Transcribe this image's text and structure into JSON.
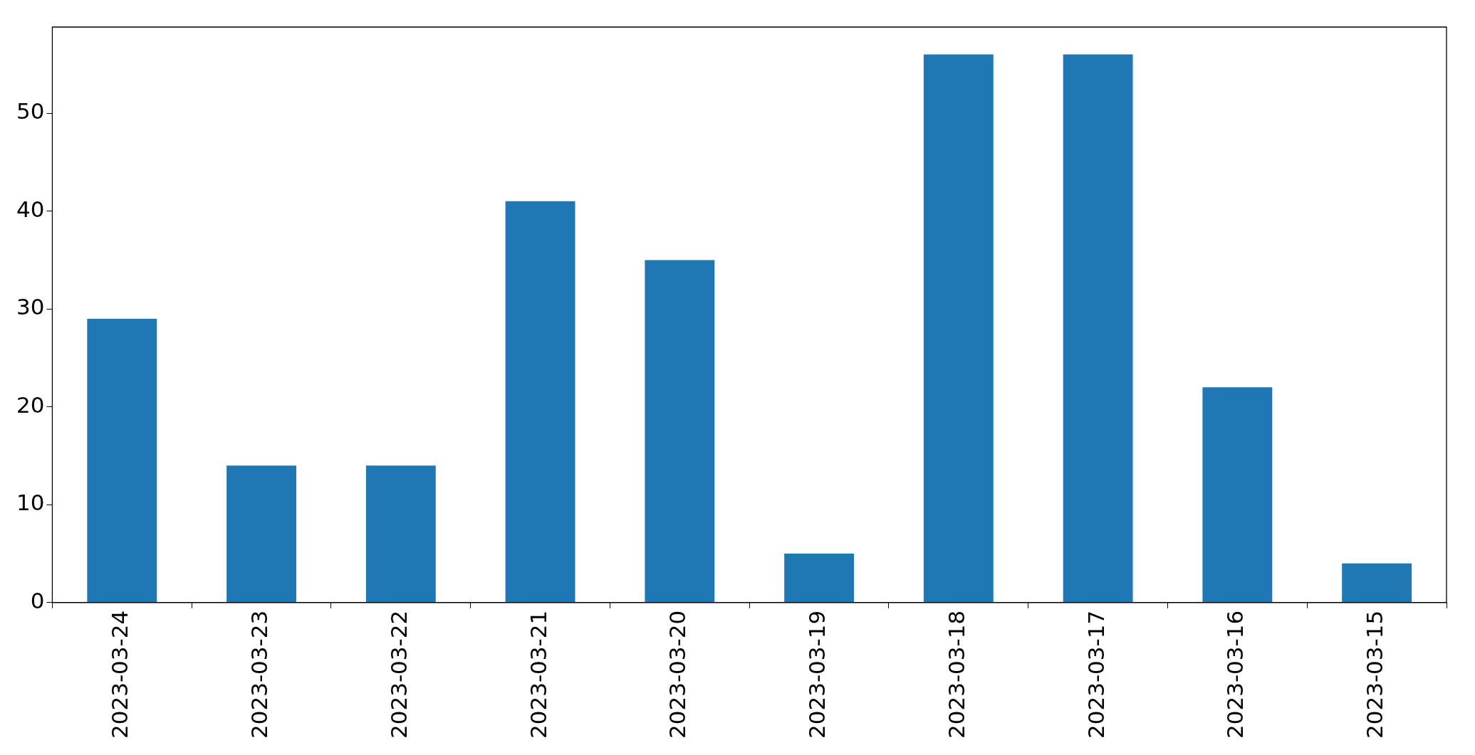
{
  "chart_data": {
    "type": "bar",
    "categories": [
      "2023-03-24",
      "2023-03-23",
      "2023-03-22",
      "2023-03-21",
      "2023-03-20",
      "2023-03-19",
      "2023-03-18",
      "2023-03-17",
      "2023-03-16",
      "2023-03-15"
    ],
    "values": [
      29,
      14,
      14,
      41,
      35,
      5,
      56,
      56,
      22,
      4
    ],
    "color": "#1f77b4",
    "ylim": [
      0,
      58.8
    ],
    "yticks": [
      0,
      10,
      20,
      30,
      40,
      50
    ],
    "grid": false,
    "legend": false
  }
}
